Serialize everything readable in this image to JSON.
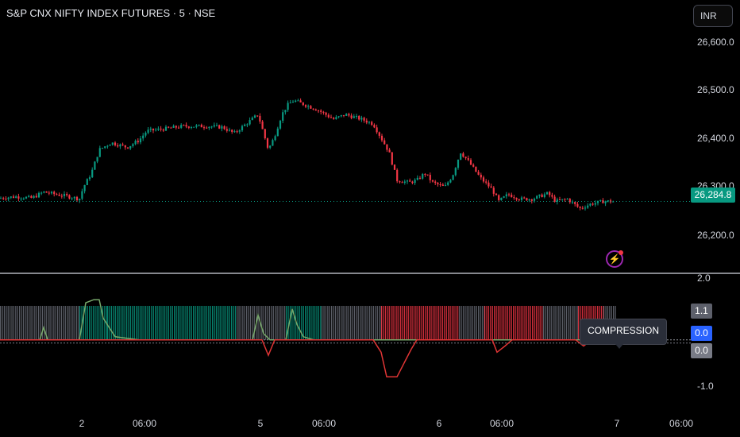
{
  "header": {
    "symbol_title": "S&P CNX NIFTY INDEX FUTURES · 5 · NSE",
    "currency_label": "INR"
  },
  "price_axis": {
    "ticks": [
      "26,600.0",
      "26,500.0",
      "26,400.0",
      "26,300.0",
      "26,200.0"
    ],
    "last_price": "26,284.8"
  },
  "indicator_axis": {
    "ticks": [
      "2.0",
      "-1.0"
    ],
    "badges": [
      "1.1",
      "0.0",
      "0.0"
    ],
    "state_label": "COMPRESSION"
  },
  "time_axis": {
    "labels": [
      "2",
      "06:00",
      "5",
      "06:00",
      "6",
      "06:00",
      "7",
      "06:00"
    ]
  },
  "icons": {
    "alert": "lightning-alert-icon"
  },
  "colors": {
    "up": "#089981",
    "down": "#f23645",
    "neutral_bar": "#6a6d78",
    "positive_line": "#77a86a",
    "negative_line": "#e03535"
  },
  "chart_data": [
    {
      "type": "candlestick",
      "title": "S&P CNX NIFTY INDEX FUTURES · 5 · NSE",
      "ylim": [
        26130,
        26680
      ],
      "last": 26284.8,
      "close_path": [
        [
          0,
          26292
        ],
        [
          20,
          26295
        ],
        [
          40,
          26292
        ],
        [
          55,
          26305
        ],
        [
          70,
          26300
        ],
        [
          85,
          26296
        ],
        [
          100,
          26290
        ],
        [
          105,
          26315
        ],
        [
          115,
          26345
        ],
        [
          125,
          26395
        ],
        [
          140,
          26410
        ],
        [
          160,
          26400
        ],
        [
          175,
          26415
        ],
        [
          185,
          26435
        ],
        [
          210,
          26440
        ],
        [
          230,
          26445
        ],
        [
          260,
          26445
        ],
        [
          280,
          26443
        ],
        [
          295,
          26430
        ],
        [
          310,
          26450
        ],
        [
          325,
          26470
        ],
        [
          332,
          26430
        ],
        [
          338,
          26395
        ],
        [
          345,
          26420
        ],
        [
          355,
          26470
        ],
        [
          362,
          26490
        ],
        [
          370,
          26500
        ],
        [
          385,
          26490
        ],
        [
          400,
          26480
        ],
        [
          420,
          26460
        ],
        [
          435,
          26470
        ],
        [
          455,
          26460
        ],
        [
          470,
          26450
        ],
        [
          480,
          26420
        ],
        [
          490,
          26390
        ],
        [
          500,
          26330
        ],
        [
          515,
          26325
        ],
        [
          525,
          26330
        ],
        [
          535,
          26345
        ],
        [
          545,
          26325
        ],
        [
          560,
          26315
        ],
        [
          570,
          26340
        ],
        [
          580,
          26390
        ],
        [
          590,
          26370
        ],
        [
          605,
          26335
        ],
        [
          620,
          26310
        ],
        [
          628,
          26285
        ],
        [
          640,
          26300
        ],
        [
          655,
          26290
        ],
        [
          670,
          26290
        ],
        [
          690,
          26302
        ],
        [
          700,
          26285
        ],
        [
          715,
          26290
        ],
        [
          730,
          26270
        ],
        [
          745,
          26280
        ],
        [
          760,
          26285
        ],
        [
          775,
          26284.8
        ]
      ]
    },
    {
      "type": "indicator",
      "ylim": [
        -1.5,
        2.0
      ],
      "columns": [
        {
          "from": 0,
          "to": 100,
          "state": "neutral"
        },
        {
          "from": 100,
          "to": 135,
          "state": "up"
        },
        {
          "from": 135,
          "to": 298,
          "state": "up"
        },
        {
          "from": 298,
          "to": 360,
          "state": "neutral"
        },
        {
          "from": 360,
          "to": 405,
          "state": "up"
        },
        {
          "from": 405,
          "to": 480,
          "state": "neutral"
        },
        {
          "from": 480,
          "to": 578,
          "state": "down"
        },
        {
          "from": 578,
          "to": 610,
          "state": "neutral"
        },
        {
          "from": 610,
          "to": 684,
          "state": "down"
        },
        {
          "from": 684,
          "to": 728,
          "state": "neutral"
        },
        {
          "from": 728,
          "to": 760,
          "state": "down"
        },
        {
          "from": 760,
          "to": 776,
          "state": "neutral"
        }
      ],
      "positive_line": [
        [
          0,
          0
        ],
        [
          50,
          0
        ],
        [
          55,
          0.4
        ],
        [
          60,
          0
        ],
        [
          100,
          0
        ],
        [
          108,
          1.2
        ],
        [
          118,
          1.3
        ],
        [
          125,
          1.3
        ],
        [
          130,
          0.7
        ],
        [
          145,
          0.1
        ],
        [
          175,
          0
        ],
        [
          318,
          0
        ],
        [
          325,
          0.8
        ],
        [
          332,
          0.2
        ],
        [
          340,
          0
        ],
        [
          360,
          0
        ],
        [
          368,
          1.0
        ],
        [
          374,
          0.5
        ],
        [
          382,
          0.1
        ],
        [
          395,
          0
        ],
        [
          776,
          0
        ]
      ],
      "negative_line": [
        [
          0,
          0
        ],
        [
          330,
          0
        ],
        [
          338,
          -0.5
        ],
        [
          346,
          0
        ],
        [
          470,
          0
        ],
        [
          480,
          -0.4
        ],
        [
          487,
          -1.2
        ],
        [
          500,
          -1.2
        ],
        [
          510,
          -0.7
        ],
        [
          518,
          -0.3
        ],
        [
          525,
          0
        ],
        [
          620,
          0
        ],
        [
          626,
          -0.4
        ],
        [
          636,
          -0.2
        ],
        [
          645,
          0
        ],
        [
          725,
          0
        ],
        [
          735,
          -0.2
        ],
        [
          745,
          0
        ],
        [
          776,
          0
        ]
      ]
    }
  ]
}
